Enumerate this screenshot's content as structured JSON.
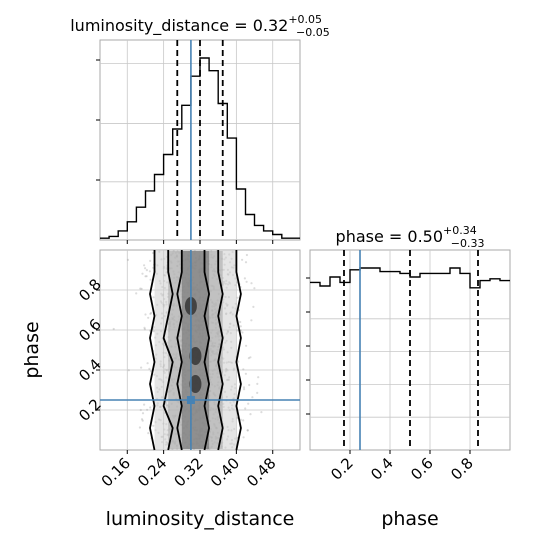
{
  "chart_data": [
    {
      "type": "histogram",
      "panel": "luminosity_distance marginal",
      "title": {
        "param": "luminosity_distance",
        "median": "0.32",
        "plus": "+0.05",
        "minus": "−0.05"
      },
      "bin_edges": [
        0.1,
        0.12,
        0.14,
        0.16,
        0.18,
        0.2,
        0.22,
        0.24,
        0.26,
        0.28,
        0.3,
        0.32,
        0.34,
        0.36,
        0.38,
        0.4,
        0.42,
        0.44,
        0.46,
        0.48,
        0.5,
        0.52,
        0.54
      ],
      "counts": [
        0.01,
        0.02,
        0.05,
        0.1,
        0.18,
        0.27,
        0.36,
        0.47,
        0.61,
        0.74,
        0.9,
        1.0,
        0.93,
        0.75,
        0.56,
        0.28,
        0.14,
        0.08,
        0.05,
        0.03,
        0.01,
        0.01
      ],
      "quantiles": [
        0.27,
        0.32,
        0.37
      ],
      "truth": 0.3,
      "xlim": [
        0.1,
        0.54
      ],
      "grid": true
    },
    {
      "type": "scatter",
      "panel": "joint luminosity_distance vs phase",
      "xlabel": "luminosity_distance",
      "ylabel": "phase",
      "xticks": [
        "0.16",
        "0.24",
        "0.32",
        "0.40",
        "0.48"
      ],
      "xtick_values": [
        0.16,
        0.24,
        0.32,
        0.4,
        0.48
      ],
      "yticks": [
        "0.2",
        "0.4",
        "0.6",
        "0.8"
      ],
      "ytick_values": [
        0.2,
        0.4,
        0.6,
        0.8
      ],
      "xlim": [
        0.1,
        0.54
      ],
      "ylim": [
        0.0,
        1.0
      ],
      "truth": {
        "x": 0.3,
        "y": 0.25
      },
      "contours": [
        {
          "x": [
            0.22,
            0.21,
            0.22,
            0.21,
            0.22,
            0.21,
            0.22,
            0.21,
            0.22,
            0.22
          ]
        },
        {
          "x": [
            0.25,
            0.26,
            0.24,
            0.25,
            0.26,
            0.24,
            0.25,
            0.26,
            0.25,
            0.25
          ]
        },
        {
          "x": [
            0.28,
            0.27,
            0.28,
            0.27,
            0.28,
            0.27,
            0.28,
            0.27,
            0.28,
            0.28
          ]
        },
        {
          "x": [
            0.33,
            0.34,
            0.33,
            0.34,
            0.33,
            0.34,
            0.33,
            0.34,
            0.33,
            0.33
          ]
        },
        {
          "x": [
            0.36,
            0.37,
            0.36,
            0.37,
            0.36,
            0.37,
            0.36,
            0.37,
            0.36,
            0.36
          ]
        },
        {
          "x": [
            0.4,
            0.41,
            0.4,
            0.41,
            0.4,
            0.41,
            0.4,
            0.41,
            0.4,
            0.4
          ]
        }
      ],
      "contour_y": [
        0.0,
        0.11,
        0.22,
        0.33,
        0.44,
        0.56,
        0.67,
        0.78,
        0.89,
        1.0
      ],
      "grid": true
    },
    {
      "type": "histogram",
      "panel": "phase marginal",
      "title": {
        "param": "phase",
        "median": "0.50",
        "plus": "+0.34",
        "minus": "−0.33"
      },
      "xlabel": "phase",
      "xticks": [
        "0.2",
        "0.4",
        "0.6",
        "0.8"
      ],
      "xtick_values": [
        0.2,
        0.4,
        0.6,
        0.8
      ],
      "bin_edges": [
        0.0,
        0.05,
        0.1,
        0.15,
        0.2,
        0.25,
        0.3,
        0.35,
        0.4,
        0.45,
        0.5,
        0.55,
        0.6,
        0.65,
        0.7,
        0.75,
        0.8,
        0.85,
        0.9,
        0.95,
        1.0
      ],
      "counts": [
        0.93,
        0.91,
        0.96,
        0.93,
        1.0,
        1.01,
        1.01,
        0.99,
        0.99,
        0.98,
        0.96,
        0.98,
        0.98,
        0.98,
        1.01,
        0.98,
        0.9,
        0.94,
        0.95,
        0.94
      ],
      "quantiles": [
        0.17,
        0.5,
        0.84
      ],
      "truth": 0.25,
      "xlim": [
        0.0,
        1.0
      ],
      "grid": true
    }
  ],
  "colors": {
    "truth": "#4682b4",
    "hist": "#000000",
    "grid": "#c8c8c8",
    "scatter": "#9a9a9a"
  }
}
